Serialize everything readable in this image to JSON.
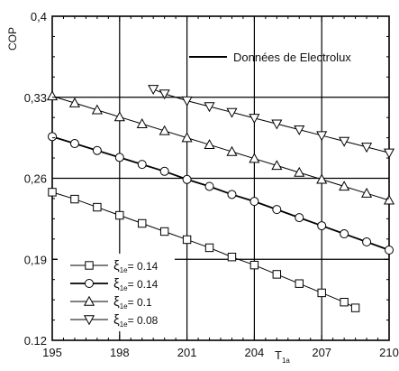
{
  "chart_data": {
    "type": "line",
    "title": "",
    "xlabel": "T",
    "xlabel_sub": "1a",
    "ylabel": "COP",
    "xlim": [
      195,
      210
    ],
    "ylim": [
      0.12,
      0.4
    ],
    "xticks": [
      195,
      198,
      201,
      204,
      207,
      210
    ],
    "xtick_labels": [
      "195",
      "198",
      "201",
      "204",
      "207",
      "210"
    ],
    "yticks": [
      0.12,
      0.19,
      0.26,
      0.33,
      0.4
    ],
    "ytick_labels": [
      "0.12",
      "0,19",
      "0,26",
      "0,33",
      "0,4"
    ],
    "grid": true,
    "reference_legend": "Données de Electrolux",
    "series": [
      {
        "name_symbol": "ξ",
        "name_sub": "1e",
        "name_value": "= 0.14",
        "marker": "square",
        "line_weight": "thin",
        "x": [
          195,
          196,
          197,
          198,
          199,
          200,
          201,
          202,
          203,
          204,
          205,
          206,
          207,
          208,
          208.5
        ],
        "y": [
          0.248,
          0.242,
          0.235,
          0.228,
          0.221,
          0.214,
          0.207,
          0.2,
          0.192,
          0.185,
          0.177,
          0.169,
          0.161,
          0.153,
          0.148
        ]
      },
      {
        "name_symbol": "ξ",
        "name_sub": "1e",
        "name_value": "= 0.14",
        "marker": "circle",
        "line_weight": "thick",
        "x": [
          195,
          196,
          197,
          198,
          199,
          200,
          201,
          202,
          203,
          204,
          205,
          206,
          207,
          208,
          209,
          210
        ],
        "y": [
          0.296,
          0.29,
          0.284,
          0.278,
          0.272,
          0.266,
          0.259,
          0.253,
          0.246,
          0.24,
          0.233,
          0.226,
          0.219,
          0.212,
          0.205,
          0.198
        ]
      },
      {
        "name_symbol": "ξ",
        "name_sub": "1e",
        "name_value": "= 0.1",
        "marker": "triangle-up",
        "line_weight": "thin",
        "x": [
          195,
          196,
          197,
          198,
          199,
          200,
          201,
          202,
          203,
          204,
          205,
          206,
          207,
          208,
          209,
          210
        ],
        "y": [
          0.331,
          0.325,
          0.319,
          0.313,
          0.307,
          0.301,
          0.295,
          0.289,
          0.283,
          0.277,
          0.271,
          0.265,
          0.259,
          0.253,
          0.247,
          0.241
        ]
      },
      {
        "name_symbol": "ξ",
        "name_sub": "1e",
        "name_value": "= 0.08",
        "marker": "triangle-down",
        "line_weight": "thin",
        "x": [
          199.5,
          200,
          201,
          202,
          203,
          204,
          205,
          206,
          207,
          208,
          209,
          210
        ],
        "y": [
          0.337,
          0.333,
          0.327,
          0.322,
          0.317,
          0.312,
          0.307,
          0.302,
          0.297,
          0.292,
          0.287,
          0.282
        ]
      }
    ]
  }
}
